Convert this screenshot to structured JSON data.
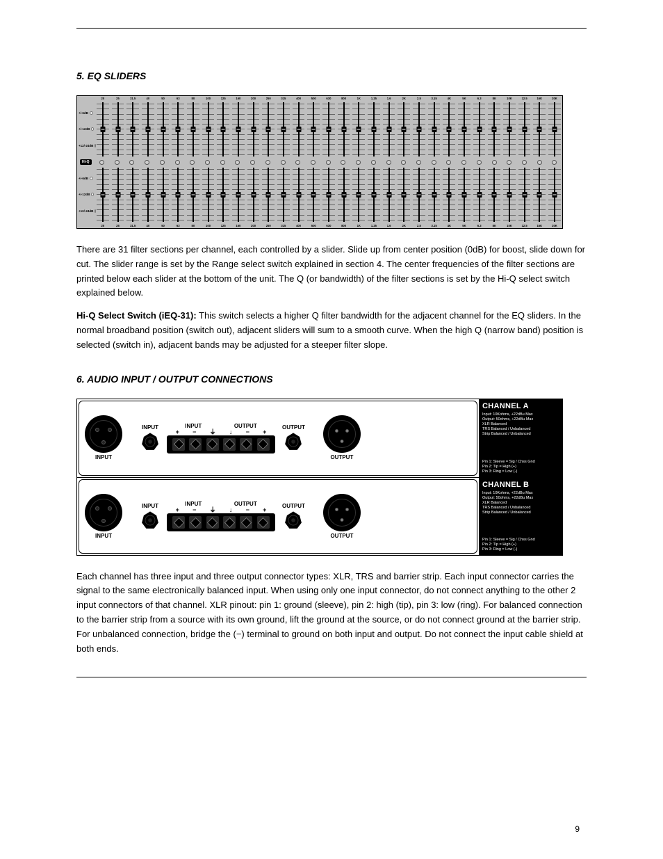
{
  "page_number": "9",
  "rule": "—",
  "section": {
    "s5": {
      "heading_num": "5.",
      "heading_text": "EQ SLIDERS",
      "para1": "There are 31 filter sections per channel, each controlled by a slider. Slide up from center position (0dB) for boost, slide down for cut. The slider range is set by the Range select switch explained in section 4. The center frequencies of the filter sections are printed below each slider at the bottom of the unit. The Q (or bandwidth) of the filter sections is set by the Hi-Q select switch explained below.",
      "hiq_title": "Hi-Q Select Switch (iEQ-31):",
      "hiq_body": "This switch selects a higher Q filter bandwidth for the adjacent channel for the EQ sliders. In the normal broadband position (switch out), adjacent sliders will sum to a smooth curve. When the high Q (narrow band) position is selected (switch in), adjacent bands may be adjusted for a steeper filter slope."
    },
    "s6": {
      "heading_num": "6.",
      "heading_text": "AUDIO INPUT / OUTPUT CONNECTIONS",
      "para1": "Each channel has three input and three output connector types: XLR, TRS and barrier strip. Each input connector carries the signal to the same electronically balanced input. When using only one input connector, do not connect anything to the other 2 input connectors of that channel. XLR pinout: pin 1: ground (sleeve), pin 2: high (tip), pin 3: low (ring). For balanced connection to the barrier strip from a source with its own ground, lift the ground at the source, or do not connect ground at the barrier strip. For unbalanced connection, bridge the (−) terminal to ground on both input and output. Do not connect the input cable shield at both ends."
    }
  },
  "eq": {
    "frequencies": [
      "20",
      "25",
      "31.5",
      "40",
      "50",
      "63",
      "80",
      "100",
      "125",
      "160",
      "200",
      "250",
      "315",
      "400",
      "500",
      "630",
      "800",
      "1K",
      "1.25",
      "1.6",
      "2K",
      "2.5",
      "3.15",
      "4K",
      "5K",
      "6.3",
      "8K",
      "10K",
      "12.5",
      "16K",
      "20K"
    ],
    "range_labels": [
      "+/-6dB",
      "+/-12dB",
      "+12/-24dB"
    ],
    "hiq_label": "Hi-Q"
  },
  "rear": {
    "input_label": "INPUT",
    "output_label": "OUTPUT",
    "barrier_input": "INPUT",
    "barrier_output": "OUTPUT",
    "signs": [
      "+",
      "−",
      "⏚",
      "↓",
      "−",
      "+"
    ],
    "channels": [
      {
        "title": "CHANNEL A",
        "specs": [
          "Input: 10Kohms, +22dBu Max",
          "Output: 50ohms, +22dBu Max",
          "XLR Balanced",
          "TRS Balanced / Unbalanced",
          "Strip Balanced / Unbalanced"
        ],
        "pins": [
          "Pin 1: Sleeve = Sig / Chss Gnd",
          "Pin 2: Tip = High (+)",
          "Pin 3: Ring = Low (-)"
        ]
      },
      {
        "title": "CHANNEL B",
        "specs": [
          "Input: 10Kohms, +22dBu Max",
          "Output: 50ohms, +22dBu Max",
          "XLR Balanced",
          "TRS Balanced / Unbalanced",
          "Strip Balanced / Unbalanced"
        ],
        "pins": [
          "Pin 1: Sleeve = Sig / Chss Gnd",
          "Pin 2: Tip = High (+)",
          "Pin 3: Ring = Low (-)"
        ]
      }
    ]
  }
}
